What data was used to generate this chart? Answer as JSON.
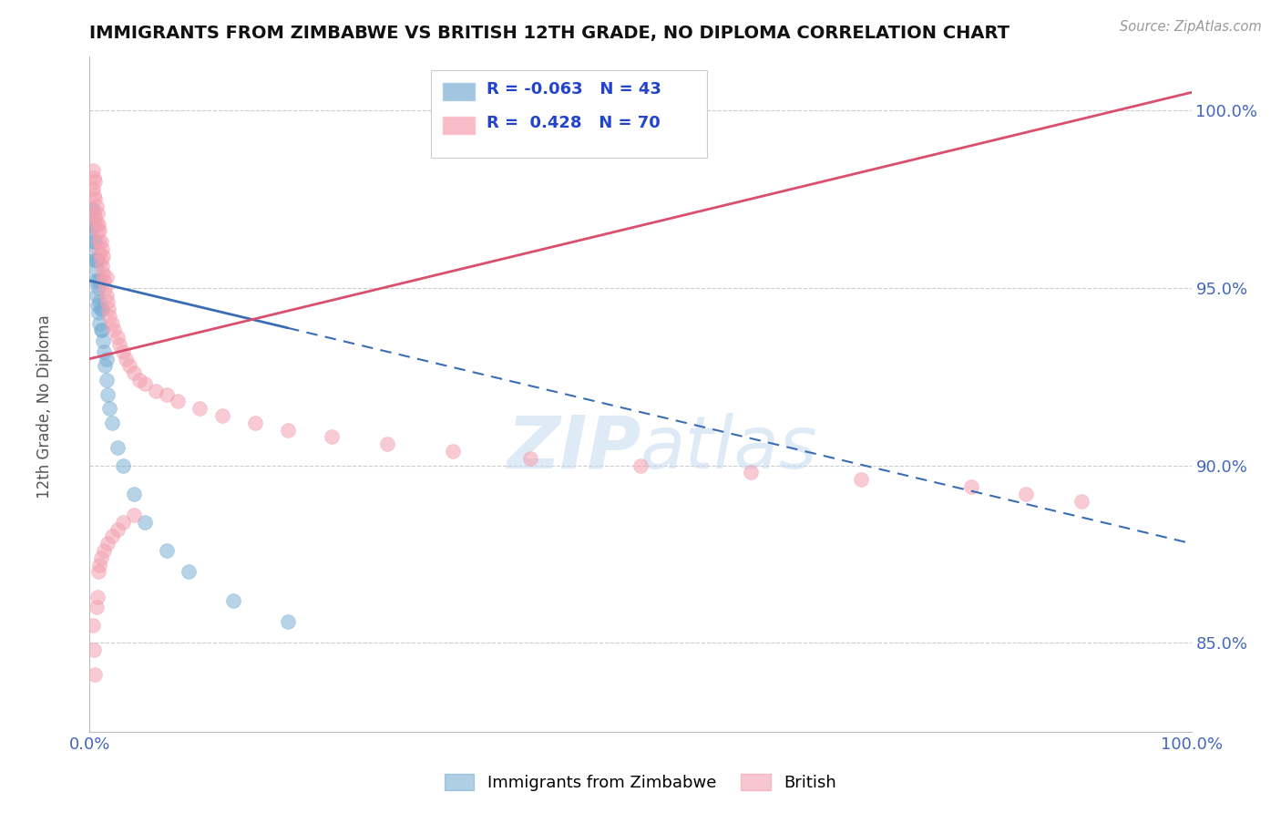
{
  "title": "IMMIGRANTS FROM ZIMBABWE VS BRITISH 12TH GRADE, NO DIPLOMA CORRELATION CHART",
  "source": "Source: ZipAtlas.com",
  "ylabel": "12th Grade, No Diploma",
  "xlim": [
    0.0,
    1.0
  ],
  "ylim": [
    0.825,
    1.015
  ],
  "yticks": [
    0.85,
    0.9,
    0.95,
    1.0
  ],
  "ytick_labels": [
    "85.0%",
    "90.0%",
    "95.0%",
    "100.0%"
  ],
  "xticks": [
    0.0,
    1.0
  ],
  "xtick_labels": [
    "0.0%",
    "100.0%"
  ],
  "legend_entries": [
    "Immigrants from Zimbabwe",
    "British"
  ],
  "legend_r_blue": "R = -0.063",
  "legend_n_blue": "N = 43",
  "legend_r_pink": "R =  0.428",
  "legend_n_pink": "N = 70",
  "blue_color": "#7BAFD4",
  "pink_color": "#F4A0B0",
  "blue_line_color": "#3B6DB5",
  "pink_line_color": "#D94F6E",
  "watermark": "ZIPatlas",
  "background_color": "#FFFFFF",
  "blue_scatter_x": [
    0.001,
    0.002,
    0.002,
    0.003,
    0.003,
    0.003,
    0.004,
    0.004,
    0.004,
    0.005,
    0.005,
    0.005,
    0.006,
    0.006,
    0.006,
    0.007,
    0.007,
    0.007,
    0.008,
    0.008,
    0.009,
    0.009,
    0.009,
    0.01,
    0.01,
    0.011,
    0.011,
    0.012,
    0.013,
    0.014,
    0.015,
    0.015,
    0.016,
    0.018,
    0.02,
    0.025,
    0.03,
    0.04,
    0.05,
    0.07,
    0.09,
    0.13,
    0.18
  ],
  "blue_scatter_y": [
    0.966,
    0.968,
    0.972,
    0.962,
    0.967,
    0.972,
    0.958,
    0.963,
    0.968,
    0.952,
    0.958,
    0.963,
    0.948,
    0.955,
    0.958,
    0.945,
    0.952,
    0.958,
    0.943,
    0.95,
    0.94,
    0.946,
    0.952,
    0.938,
    0.944,
    0.938,
    0.944,
    0.935,
    0.932,
    0.928,
    0.924,
    0.93,
    0.92,
    0.916,
    0.912,
    0.905,
    0.9,
    0.892,
    0.884,
    0.876,
    0.87,
    0.862,
    0.856
  ],
  "pink_scatter_x": [
    0.003,
    0.003,
    0.004,
    0.004,
    0.004,
    0.005,
    0.005,
    0.005,
    0.006,
    0.006,
    0.007,
    0.007,
    0.008,
    0.008,
    0.009,
    0.009,
    0.01,
    0.01,
    0.011,
    0.011,
    0.012,
    0.012,
    0.013,
    0.014,
    0.015,
    0.015,
    0.016,
    0.017,
    0.018,
    0.02,
    0.022,
    0.025,
    0.027,
    0.03,
    0.033,
    0.036,
    0.04,
    0.045,
    0.05,
    0.06,
    0.07,
    0.08,
    0.1,
    0.12,
    0.15,
    0.18,
    0.22,
    0.27,
    0.33,
    0.4,
    0.5,
    0.6,
    0.7,
    0.8,
    0.85,
    0.9,
    0.003,
    0.004,
    0.005,
    0.006,
    0.007,
    0.008,
    0.009,
    0.01,
    0.013,
    0.016,
    0.02,
    0.025,
    0.03,
    0.04
  ],
  "pink_scatter_y": [
    0.978,
    0.983,
    0.971,
    0.976,
    0.981,
    0.97,
    0.975,
    0.98,
    0.968,
    0.973,
    0.966,
    0.971,
    0.963,
    0.968,
    0.96,
    0.966,
    0.958,
    0.963,
    0.956,
    0.961,
    0.954,
    0.959,
    0.952,
    0.95,
    0.948,
    0.953,
    0.946,
    0.944,
    0.942,
    0.94,
    0.938,
    0.936,
    0.934,
    0.932,
    0.93,
    0.928,
    0.926,
    0.924,
    0.923,
    0.921,
    0.92,
    0.918,
    0.916,
    0.914,
    0.912,
    0.91,
    0.908,
    0.906,
    0.904,
    0.902,
    0.9,
    0.898,
    0.896,
    0.894,
    0.892,
    0.89,
    0.855,
    0.848,
    0.841,
    0.86,
    0.863,
    0.87,
    0.872,
    0.874,
    0.876,
    0.878,
    0.88,
    0.882,
    0.884,
    0.886
  ],
  "blue_trend_x0": 0.0,
  "blue_trend_y0": 0.952,
  "blue_trend_x1": 1.0,
  "blue_trend_y1": 0.878,
  "pink_trend_x0": 0.0,
  "pink_trend_y0": 0.93,
  "pink_trend_x1": 1.0,
  "pink_trend_y1": 1.005
}
